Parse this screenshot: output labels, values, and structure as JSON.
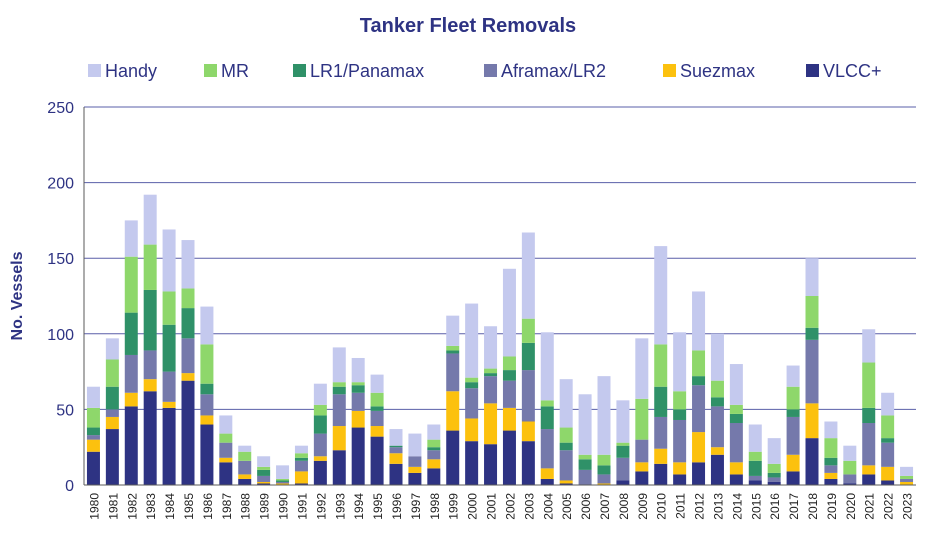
{
  "chart_data": {
    "type": "bar",
    "stacked": true,
    "title": "Tanker Fleet Removals",
    "xlabel": "",
    "ylabel": "No. Vessels",
    "ylim": [
      0,
      250
    ],
    "yticks": [
      0,
      50,
      100,
      150,
      200,
      250
    ],
    "grid": true,
    "legend_position": "top",
    "categories": [
      "1980",
      "1981",
      "1982",
      "1983",
      "1984",
      "1985",
      "1986",
      "1987",
      "1988",
      "1989",
      "1990",
      "1991",
      "1992",
      "1993",
      "1994",
      "1995",
      "1996",
      "1997",
      "1998",
      "1999",
      "2000",
      "2001",
      "2002",
      "2003",
      "2004",
      "2005",
      "2006",
      "2007",
      "2008",
      "2009",
      "2010",
      "2011",
      "2012",
      "2013",
      "2014",
      "2015",
      "2016",
      "2017",
      "2018",
      "2019",
      "2020",
      "2021",
      "2022",
      "2023"
    ],
    "series": [
      {
        "name": "VLCC+",
        "color": "#2e3383",
        "values": [
          22,
          37,
          52,
          62,
          51,
          69,
          40,
          15,
          4,
          1,
          0,
          1,
          16,
          23,
          38,
          32,
          14,
          8,
          11,
          36,
          29,
          27,
          36,
          29,
          4,
          1,
          0,
          0,
          3,
          9,
          14,
          7,
          15,
          20,
          7,
          3,
          2,
          9,
          31,
          4,
          1,
          7,
          3,
          0
        ]
      },
      {
        "name": "Suezmax",
        "color": "#fcc10e",
        "values": [
          8,
          8,
          9,
          8,
          4,
          5,
          6,
          3,
          3,
          1,
          1,
          8,
          3,
          16,
          11,
          7,
          7,
          4,
          6,
          26,
          15,
          27,
          15,
          13,
          7,
          2,
          0,
          1,
          0,
          6,
          10,
          8,
          20,
          5,
          8,
          0,
          0,
          11,
          23,
          4,
          0,
          6,
          9,
          2
        ]
      },
      {
        "name": "Aframax/LR2",
        "color": "#7579ab",
        "values": [
          3,
          5,
          25,
          19,
          20,
          23,
          14,
          10,
          9,
          4,
          1,
          7,
          15,
          21,
          12,
          10,
          4,
          7,
          6,
          25,
          20,
          18,
          18,
          34,
          26,
          20,
          10,
          6,
          15,
          15,
          21,
          28,
          31,
          27,
          26,
          3,
          3,
          25,
          42,
          5,
          6,
          28,
          16,
          2
        ]
      },
      {
        "name": "LR1/Panamax",
        "color": "#2f9168",
        "values": [
          5,
          15,
          28,
          40,
          31,
          20,
          7,
          0,
          0,
          4,
          1,
          2,
          12,
          5,
          5,
          3,
          1,
          0,
          2,
          2,
          4,
          2,
          7,
          18,
          15,
          5,
          7,
          6,
          8,
          0,
          20,
          7,
          6,
          6,
          6,
          10,
          3,
          5,
          8,
          5,
          0,
          10,
          3,
          0
        ]
      },
      {
        "name": "MR",
        "color": "#8ed76b",
        "values": [
          13,
          18,
          37,
          30,
          22,
          13,
          26,
          6,
          6,
          2,
          1,
          3,
          7,
          3,
          2,
          9,
          0,
          0,
          5,
          3,
          3,
          3,
          9,
          16,
          4,
          10,
          3,
          7,
          2,
          27,
          28,
          12,
          17,
          11,
          6,
          6,
          6,
          15,
          21,
          13,
          9,
          30,
          15,
          2
        ]
      },
      {
        "name": "Handy",
        "color": "#c4c9ee",
        "values": [
          14,
          14,
          24,
          33,
          41,
          32,
          25,
          12,
          4,
          7,
          9,
          5,
          14,
          23,
          16,
          12,
          11,
          15,
          10,
          20,
          49,
          28,
          58,
          57,
          45,
          32,
          40,
          52,
          28,
          40,
          65,
          39,
          39,
          31,
          27,
          18,
          17,
          14,
          25,
          11,
          10,
          22,
          15,
          6
        ]
      }
    ]
  }
}
